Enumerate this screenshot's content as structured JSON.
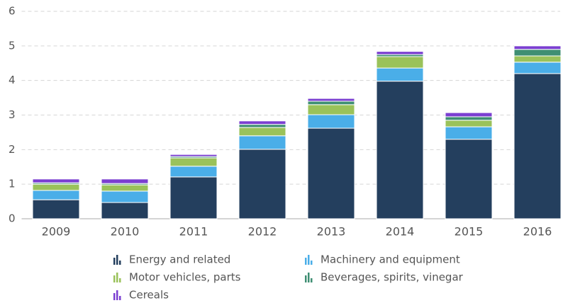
{
  "chart_data": {
    "type": "stacked_bar",
    "categories": [
      "2009",
      "2010",
      "2011",
      "2012",
      "2013",
      "2014",
      "2015",
      "2016"
    ],
    "series": [
      {
        "name": "Energy and related",
        "color": "#243f5e",
        "values": [
          0.55,
          0.47,
          1.21,
          2.01,
          2.62,
          3.98,
          2.3,
          4.2
        ]
      },
      {
        "name": "Machinery and equipment",
        "color": "#4aaee8",
        "values": [
          0.27,
          0.33,
          0.31,
          0.39,
          0.39,
          0.38,
          0.36,
          0.33
        ]
      },
      {
        "name": "Motor vehicles, parts",
        "color": "#9ac25a",
        "values": [
          0.18,
          0.18,
          0.24,
          0.24,
          0.29,
          0.33,
          0.19,
          0.18
        ]
      },
      {
        "name": "Beverages, spirits, vinegar",
        "color": "#3f8f73",
        "values": [
          0.04,
          0.04,
          0.04,
          0.09,
          0.1,
          0.06,
          0.1,
          0.19
        ]
      },
      {
        "name": "Cereals",
        "color": "#7b3fd1",
        "values": [
          0.11,
          0.13,
          0.06,
          0.1,
          0.08,
          0.09,
          0.12,
          0.1
        ]
      }
    ],
    "ylim": [
      0,
      6
    ],
    "yticks": [
      0,
      1,
      2,
      3,
      4,
      5,
      6
    ],
    "grid": true
  }
}
